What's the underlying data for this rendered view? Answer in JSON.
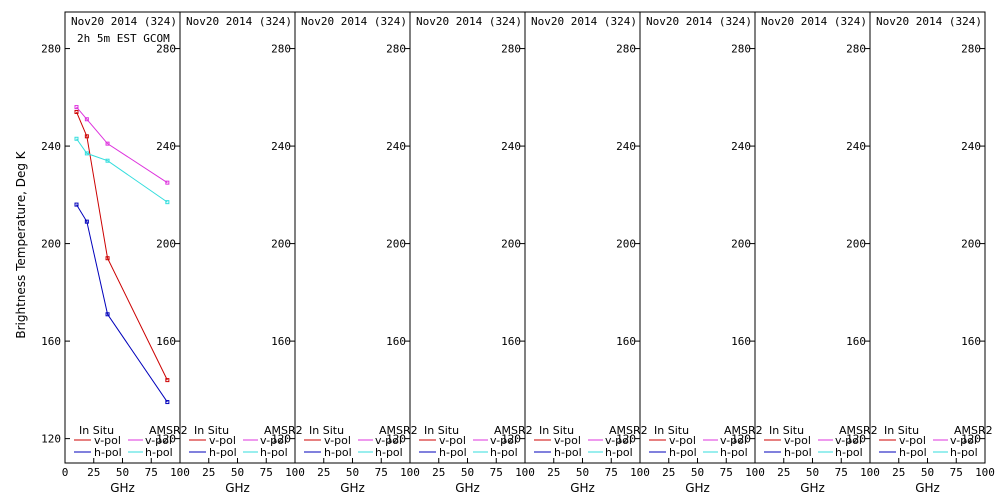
{
  "ylabel": "Brightness Temperature, Deg K",
  "xlabel": "GHz",
  "xlim": [
    0,
    100
  ],
  "ylim": [
    110,
    295
  ],
  "xticks": [
    0,
    25,
    50,
    75,
    100
  ],
  "yticks": [
    120,
    160,
    200,
    240,
    280
  ],
  "legend": {
    "left_title": "In Situ",
    "right_title": "AMSR2",
    "v_label": "v-pol",
    "h_label": "h-pol",
    "colors": {
      "insitu_v": "#cc0000",
      "insitu_h": "#0000bb",
      "amsr2_v": "#dd33dd",
      "amsr2_h": "#33dddd"
    }
  },
  "chart_data": [
    {
      "type": "line",
      "title": "Nov20 2014 (324)",
      "subtitle": "2h 5m EST GCOM",
      "series": [
        {
          "name": "In Situ v-pol",
          "color": "#cc0000",
          "x": [
            10,
            19,
            37,
            89
          ],
          "y": [
            254,
            244,
            194,
            144
          ]
        },
        {
          "name": "In Situ h-pol",
          "color": "#0000bb",
          "x": [
            10,
            19,
            37,
            89
          ],
          "y": [
            216,
            209,
            171,
            135
          ]
        },
        {
          "name": "AMSR2 v-pol",
          "color": "#dd33dd",
          "x": [
            10,
            19,
            37,
            89
          ],
          "y": [
            256,
            251,
            241,
            225
          ]
        },
        {
          "name": "AMSR2 h-pol",
          "color": "#33dddd",
          "x": [
            10,
            19,
            37,
            89
          ],
          "y": [
            243,
            237,
            234,
            217
          ]
        }
      ]
    },
    {
      "type": "line",
      "title": "Nov20 2014 (324)",
      "subtitle": "",
      "series": []
    },
    {
      "type": "line",
      "title": "Nov20 2014 (324)",
      "subtitle": "",
      "series": []
    },
    {
      "type": "line",
      "title": "Nov20 2014 (324)",
      "subtitle": "",
      "series": []
    },
    {
      "type": "line",
      "title": "Nov20 2014 (324)",
      "subtitle": "",
      "series": []
    },
    {
      "type": "line",
      "title": "Nov20 2014 (324)",
      "subtitle": "",
      "series": []
    },
    {
      "type": "line",
      "title": "Nov20 2014 (324)",
      "subtitle": "",
      "series": []
    },
    {
      "type": "line",
      "title": "Nov20 2014 (324)",
      "subtitle": "",
      "series": []
    }
  ]
}
